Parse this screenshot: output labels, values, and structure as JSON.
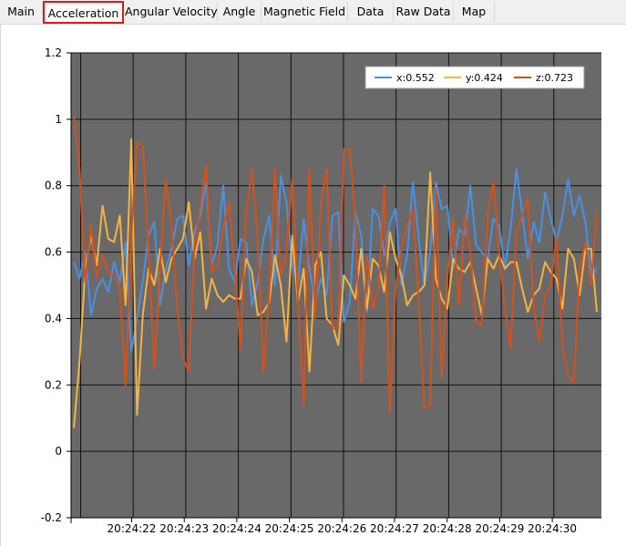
{
  "tabs": [
    {
      "label": "Main",
      "active": false
    },
    {
      "label": "Acceleration",
      "active": true
    },
    {
      "label": "Angular Velocity",
      "active": false
    },
    {
      "label": "Angle",
      "active": false
    },
    {
      "label": "Magnetic Field",
      "active": false
    },
    {
      "label": "Data",
      "active": false
    },
    {
      "label": "Raw Data",
      "active": false
    },
    {
      "label": "Map",
      "active": false
    }
  ],
  "colors": {
    "plot_bg": "#696969",
    "grid": "#111111",
    "x": "#4a90e2",
    "y": "#f5b342",
    "z": "#d2521c",
    "active_tab_border": "#e01818"
  },
  "chart_data": {
    "type": "line",
    "title": "",
    "xlabel": "",
    "ylabel": "",
    "ylim": [
      -0.2,
      1.2
    ],
    "yticks": [
      "-0.2",
      "0",
      "0.2",
      "0.4",
      "0.6",
      "0.8",
      "1",
      "1.2"
    ],
    "xticks": [
      "20:24:22",
      "20:24:23",
      "20:24:24",
      "20:24:25",
      "20:24:26",
      "20:24:27",
      "20:24:28",
      "20:24:29",
      "20:24:30"
    ],
    "grid": true,
    "legend_position": "top-right",
    "legend": [
      "x:0.552",
      "y:0.424",
      "z:0.723"
    ],
    "series": [
      {
        "name": "x:0.552",
        "values": [
          0.57,
          0.52,
          0.6,
          0.41,
          0.49,
          0.52,
          0.48,
          0.57,
          0.51,
          0.63,
          0.3,
          0.4,
          0.51,
          0.65,
          0.69,
          0.44,
          0.55,
          0.61,
          0.7,
          0.71,
          0.56,
          0.66,
          0.71,
          0.81,
          0.56,
          0.62,
          0.8,
          0.55,
          0.51,
          0.64,
          0.63,
          0.44,
          0.51,
          0.64,
          0.71,
          0.5,
          0.83,
          0.75,
          0.56,
          0.5,
          0.7,
          0.55,
          0.45,
          0.52,
          0.47,
          0.71,
          0.72,
          0.39,
          0.45,
          0.72,
          0.65,
          0.42,
          0.73,
          0.71,
          0.59,
          0.69,
          0.73,
          0.5,
          0.59,
          0.81,
          0.64,
          0.5,
          0.6,
          0.81,
          0.73,
          0.74,
          0.55,
          0.67,
          0.65,
          0.8,
          0.62,
          0.6,
          0.58,
          0.7,
          0.68,
          0.55,
          0.67,
          0.85,
          0.72,
          0.58,
          0.69,
          0.63,
          0.78,
          0.7,
          0.63,
          0.71,
          0.82,
          0.71,
          0.77,
          0.69,
          0.53,
          0.55
        ]
      },
      {
        "name": "y:0.424",
        "values": [
          0.07,
          0.27,
          0.55,
          0.65,
          0.56,
          0.74,
          0.64,
          0.63,
          0.71,
          0.44,
          0.94,
          0.11,
          0.41,
          0.55,
          0.5,
          0.61,
          0.51,
          0.58,
          0.61,
          0.64,
          0.75,
          0.58,
          0.66,
          0.43,
          0.52,
          0.47,
          0.45,
          0.47,
          0.46,
          0.46,
          0.58,
          0.54,
          0.41,
          0.42,
          0.45,
          0.59,
          0.5,
          0.33,
          0.65,
          0.45,
          0.55,
          0.24,
          0.56,
          0.6,
          0.4,
          0.38,
          0.32,
          0.53,
          0.5,
          0.46,
          0.61,
          0.43,
          0.58,
          0.56,
          0.48,
          0.66,
          0.58,
          0.53,
          0.44,
          0.47,
          0.48,
          0.5,
          0.84,
          0.52,
          0.46,
          0.43,
          0.58,
          0.55,
          0.54,
          0.57,
          0.49,
          0.41,
          0.58,
          0.55,
          0.59,
          0.55,
          0.57,
          0.57,
          0.49,
          0.42,
          0.47,
          0.49,
          0.57,
          0.54,
          0.52,
          0.43,
          0.61,
          0.58,
          0.47,
          0.61,
          0.61,
          0.42
        ]
      },
      {
        "name": "z:0.723",
        "values": [
          1.01,
          0.85,
          0.51,
          0.68,
          0.52,
          0.59,
          0.54,
          0.53,
          0.49,
          0.2,
          0.65,
          0.93,
          0.92,
          0.61,
          0.25,
          0.55,
          0.82,
          0.68,
          0.43,
          0.28,
          0.24,
          0.62,
          0.74,
          0.86,
          0.54,
          0.56,
          0.67,
          0.75,
          0.55,
          0.31,
          0.72,
          0.85,
          0.64,
          0.24,
          0.48,
          0.85,
          0.53,
          0.6,
          0.82,
          0.46,
          0.14,
          0.85,
          0.4,
          0.75,
          0.85,
          0.37,
          0.37,
          0.91,
          0.91,
          0.69,
          0.21,
          0.59,
          0.43,
          0.49,
          0.8,
          0.12,
          0.49,
          0.61,
          0.68,
          0.73,
          0.45,
          0.13,
          0.14,
          0.79,
          0.22,
          0.53,
          0.7,
          0.44,
          0.71,
          0.6,
          0.39,
          0.38,
          0.71,
          0.81,
          0.6,
          0.43,
          0.31,
          0.66,
          0.71,
          0.76,
          0.44,
          0.33,
          0.47,
          0.5,
          0.65,
          0.32,
          0.23,
          0.21,
          0.55,
          0.63,
          0.5,
          0.72
        ]
      }
    ]
  }
}
